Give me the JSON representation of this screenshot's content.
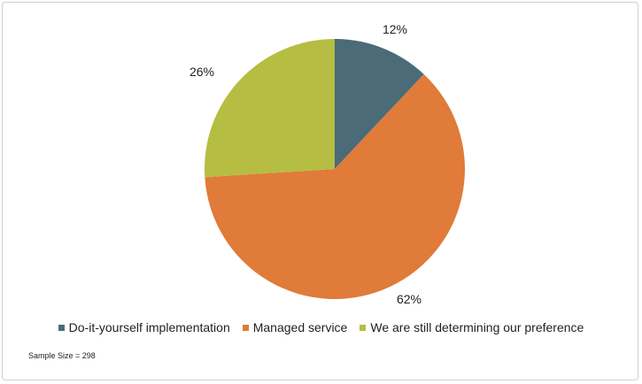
{
  "chart_data": {
    "type": "pie",
    "title": "",
    "categories": [
      "Do-it-yourself implementation",
      "Managed service",
      "We are still determining our preference"
    ],
    "values": [
      12,
      62,
      26
    ],
    "value_labels": [
      "12%",
      "62%",
      "26%"
    ],
    "colors": [
      "#4a6b77",
      "#e07b39",
      "#b5bd42"
    ],
    "start_angle_deg": 0,
    "direction": "clockwise",
    "legend_position": "bottom"
  },
  "footnote": "Sample Size = 298"
}
